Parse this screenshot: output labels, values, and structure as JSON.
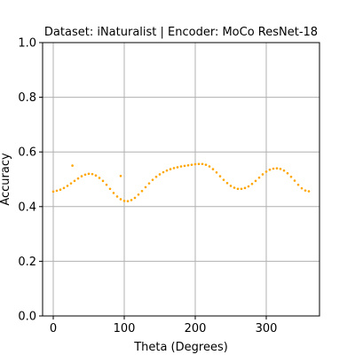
{
  "chart_data": {
    "type": "scatter",
    "title": "Dataset: iNaturalist | Encoder: MoCo ResNet-18",
    "xlabel": "Theta (Degrees)",
    "ylabel": "Accuracy",
    "xlim": [
      -15,
      375
    ],
    "ylim": [
      0.0,
      1.0
    ],
    "xticks": [
      0,
      100,
      200,
      300
    ],
    "yticks": [
      0.0,
      0.2,
      0.4,
      0.6,
      0.8,
      1.0
    ],
    "xtick_labels": [
      "0",
      "100",
      "200",
      "300"
    ],
    "ytick_labels": [
      "0.0",
      "0.2",
      "0.4",
      "0.6",
      "0.8",
      "1.0"
    ],
    "grid": true,
    "marker_color": "#ffa500",
    "series": [
      {
        "points": [
          [
            0,
            0.455
          ],
          [
            5,
            0.458
          ],
          [
            10,
            0.462
          ],
          [
            15,
            0.468
          ],
          [
            20,
            0.476
          ],
          [
            25,
            0.485
          ],
          [
            30,
            0.494
          ],
          [
            35,
            0.503
          ],
          [
            40,
            0.511
          ],
          [
            45,
            0.517
          ],
          [
            50,
            0.52
          ],
          [
            55,
            0.519
          ],
          [
            60,
            0.514
          ],
          [
            65,
            0.505
          ],
          [
            70,
            0.494
          ],
          [
            75,
            0.48
          ],
          [
            80,
            0.465
          ],
          [
            85,
            0.45
          ],
          [
            90,
            0.437
          ],
          [
            95,
            0.427
          ],
          [
            100,
            0.421
          ],
          [
            105,
            0.42
          ],
          [
            110,
            0.424
          ],
          [
            115,
            0.432
          ],
          [
            120,
            0.444
          ],
          [
            125,
            0.457
          ],
          [
            130,
            0.471
          ],
          [
            135,
            0.485
          ],
          [
            140,
            0.498
          ],
          [
            145,
            0.509
          ],
          [
            150,
            0.518
          ],
          [
            155,
            0.526
          ],
          [
            160,
            0.532
          ],
          [
            165,
            0.537
          ],
          [
            170,
            0.541
          ],
          [
            175,
            0.544
          ],
          [
            180,
            0.547
          ],
          [
            185,
            0.549
          ],
          [
            190,
            0.551
          ],
          [
            195,
            0.553
          ],
          [
            200,
            0.555
          ],
          [
            205,
            0.556
          ],
          [
            210,
            0.556
          ],
          [
            215,
            0.553
          ],
          [
            220,
            0.547
          ],
          [
            225,
            0.537
          ],
          [
            230,
            0.525
          ],
          [
            235,
            0.511
          ],
          [
            240,
            0.498
          ],
          [
            245,
            0.486
          ],
          [
            250,
            0.476
          ],
          [
            255,
            0.469
          ],
          [
            260,
            0.465
          ],
          [
            265,
            0.465
          ],
          [
            270,
            0.468
          ],
          [
            275,
            0.474
          ],
          [
            280,
            0.483
          ],
          [
            285,
            0.494
          ],
          [
            290,
            0.506
          ],
          [
            295,
            0.518
          ],
          [
            300,
            0.528
          ],
          [
            305,
            0.535
          ],
          [
            310,
            0.539
          ],
          [
            315,
            0.54
          ],
          [
            320,
            0.538
          ],
          [
            325,
            0.532
          ],
          [
            330,
            0.522
          ],
          [
            335,
            0.509
          ],
          [
            340,
            0.495
          ],
          [
            345,
            0.48
          ],
          [
            350,
            0.467
          ],
          [
            355,
            0.459
          ],
          [
            360,
            0.456
          ],
          [
            27,
            0.55
          ],
          [
            95,
            0.512
          ]
        ]
      }
    ]
  }
}
